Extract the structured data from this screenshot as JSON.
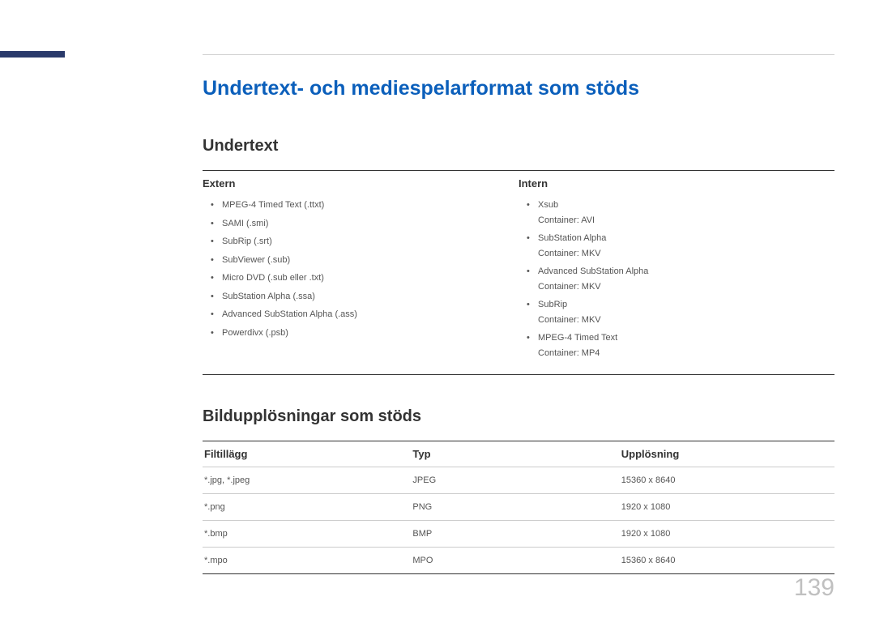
{
  "page_number": "139",
  "main_title": "Undertext- och mediespelarformat som stöds",
  "section1": {
    "title": "Undertext",
    "col1_header": "Extern",
    "col2_header": "Intern",
    "extern": [
      "MPEG-4 Timed Text (.ttxt)",
      "SAMI (.smi)",
      "SubRip (.srt)",
      "SubViewer (.sub)",
      "Micro DVD (.sub eller .txt)",
      "SubStation Alpha (.ssa)",
      "Advanced SubStation Alpha (.ass)",
      "Powerdivx (.psb)"
    ],
    "intern": [
      {
        "name": "Xsub",
        "container": "Container: AVI"
      },
      {
        "name": "SubStation Alpha",
        "container": "Container: MKV"
      },
      {
        "name": "Advanced SubStation Alpha",
        "container": "Container: MKV"
      },
      {
        "name": "SubRip",
        "container": "Container: MKV"
      },
      {
        "name": "MPEG-4 Timed Text",
        "container": "Container: MP4"
      }
    ]
  },
  "section2": {
    "title": "Bildupplösningar som stöds",
    "headers": {
      "h1": "Filtillägg",
      "h2": "Typ",
      "h3": "Upplösning"
    },
    "rows": [
      {
        "ext": "*.jpg, *.jpeg",
        "type": "JPEG",
        "res": "15360 x 8640"
      },
      {
        "ext": "*.png",
        "type": "PNG",
        "res": "1920 x 1080"
      },
      {
        "ext": "*.bmp",
        "type": "BMP",
        "res": "1920 x 1080"
      },
      {
        "ext": "*.mpo",
        "type": "MPO",
        "res": "15360 x 8640"
      }
    ]
  }
}
